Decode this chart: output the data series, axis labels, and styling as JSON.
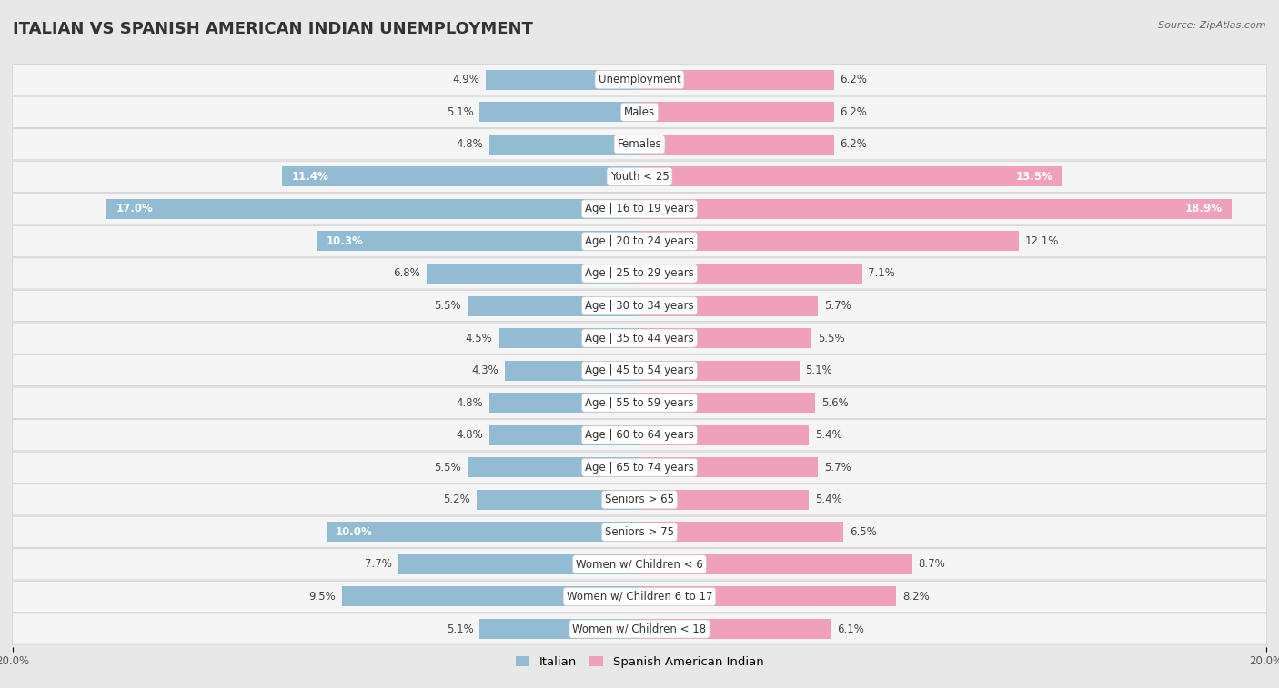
{
  "title": "Italian vs Spanish American Indian Unemployment",
  "title_display": "ITALIAN VS SPANISH AMERICAN INDIAN UNEMPLOYMENT",
  "source": "Source: ZipAtlas.com",
  "categories": [
    "Unemployment",
    "Males",
    "Females",
    "Youth < 25",
    "Age | 16 to 19 years",
    "Age | 20 to 24 years",
    "Age | 25 to 29 years",
    "Age | 30 to 34 years",
    "Age | 35 to 44 years",
    "Age | 45 to 54 years",
    "Age | 55 to 59 years",
    "Age | 60 to 64 years",
    "Age | 65 to 74 years",
    "Seniors > 65",
    "Seniors > 75",
    "Women w/ Children < 6",
    "Women w/ Children 6 to 17",
    "Women w/ Children < 18"
  ],
  "italian": [
    4.9,
    5.1,
    4.8,
    11.4,
    17.0,
    10.3,
    6.8,
    5.5,
    4.5,
    4.3,
    4.8,
    4.8,
    5.5,
    5.2,
    10.0,
    7.7,
    9.5,
    5.1
  ],
  "spanish_american_indian": [
    6.2,
    6.2,
    6.2,
    13.5,
    18.9,
    12.1,
    7.1,
    5.7,
    5.5,
    5.1,
    5.6,
    5.4,
    5.7,
    5.4,
    6.5,
    8.7,
    8.2,
    6.1
  ],
  "italian_color": "#92bcd4",
  "spanish_color": "#f0a0ba",
  "bg_color": "#e8e8e8",
  "row_bg_color": "#f5f5f5",
  "row_border_color": "#d0d0d0",
  "axis_max": 20.0,
  "bar_height": 0.62,
  "title_fontsize": 13,
  "label_fontsize": 8.5,
  "value_fontsize": 8.5,
  "tick_fontsize": 8.5,
  "legend_fontsize": 9.5
}
